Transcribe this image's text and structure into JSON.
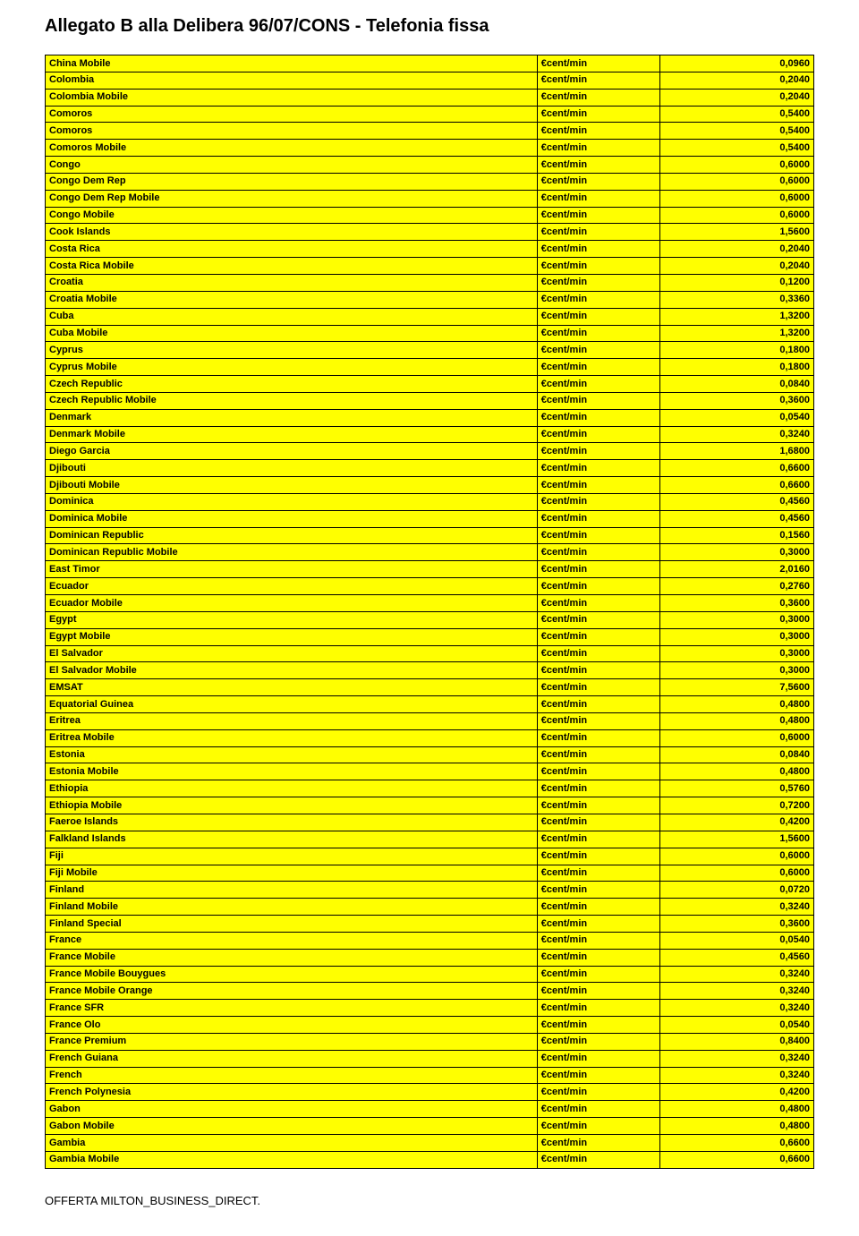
{
  "title": "Allegato B alla Delibera 96/07/CONS - Telefonia fissa",
  "unit_label": "€cent/min",
  "footer": "OFFERTA MILTON_BUSINESS_DIRECT.",
  "rows": [
    {
      "country": "China Mobile",
      "value": "0,0960"
    },
    {
      "country": "Colombia",
      "value": "0,2040"
    },
    {
      "country": "Colombia Mobile",
      "value": "0,2040"
    },
    {
      "country": "Comoros",
      "value": "0,5400"
    },
    {
      "country": "Comoros",
      "value": "0,5400"
    },
    {
      "country": "Comoros Mobile",
      "value": "0,5400"
    },
    {
      "country": "Congo",
      "value": "0,6000"
    },
    {
      "country": "Congo Dem Rep",
      "value": "0,6000"
    },
    {
      "country": "Congo Dem Rep Mobile",
      "value": "0,6000"
    },
    {
      "country": "Congo Mobile",
      "value": "0,6000"
    },
    {
      "country": "Cook Islands",
      "value": "1,5600"
    },
    {
      "country": "Costa Rica",
      "value": "0,2040"
    },
    {
      "country": "Costa Rica Mobile",
      "value": "0,2040"
    },
    {
      "country": "Croatia",
      "value": "0,1200"
    },
    {
      "country": "Croatia Mobile",
      "value": "0,3360"
    },
    {
      "country": "Cuba",
      "value": "1,3200"
    },
    {
      "country": "Cuba Mobile",
      "value": "1,3200"
    },
    {
      "country": "Cyprus",
      "value": "0,1800"
    },
    {
      "country": "Cyprus Mobile",
      "value": "0,1800"
    },
    {
      "country": "Czech Republic",
      "value": "0,0840"
    },
    {
      "country": "Czech Republic Mobile",
      "value": "0,3600"
    },
    {
      "country": "Denmark",
      "value": "0,0540"
    },
    {
      "country": "Denmark Mobile",
      "value": "0,3240"
    },
    {
      "country": "Diego Garcia",
      "value": "1,6800"
    },
    {
      "country": "Djibouti",
      "value": "0,6600"
    },
    {
      "country": "Djibouti Mobile",
      "value": "0,6600"
    },
    {
      "country": "Dominica",
      "value": "0,4560"
    },
    {
      "country": "Dominica Mobile",
      "value": "0,4560"
    },
    {
      "country": "Dominican Republic",
      "value": "0,1560"
    },
    {
      "country": "Dominican Republic Mobile",
      "value": "0,3000"
    },
    {
      "country": "East Timor",
      "value": "2,0160"
    },
    {
      "country": "Ecuador",
      "value": "0,2760"
    },
    {
      "country": "Ecuador Mobile",
      "value": "0,3600"
    },
    {
      "country": "Egypt",
      "value": "0,3000"
    },
    {
      "country": "Egypt Mobile",
      "value": "0,3000"
    },
    {
      "country": "El Salvador",
      "value": "0,3000"
    },
    {
      "country": "El Salvador Mobile",
      "value": "0,3000"
    },
    {
      "country": "EMSAT",
      "value": "7,5600"
    },
    {
      "country": "Equatorial Guinea",
      "value": "0,4800"
    },
    {
      "country": "Eritrea",
      "value": "0,4800"
    },
    {
      "country": "Eritrea Mobile",
      "value": "0,6000"
    },
    {
      "country": "Estonia",
      "value": "0,0840"
    },
    {
      "country": "Estonia Mobile",
      "value": "0,4800"
    },
    {
      "country": "Ethiopia",
      "value": "0,5760"
    },
    {
      "country": "Ethiopia Mobile",
      "value": "0,7200"
    },
    {
      "country": "Faeroe Islands",
      "value": "0,4200"
    },
    {
      "country": "Falkland Islands",
      "value": "1,5600"
    },
    {
      "country": "Fiji",
      "value": "0,6000"
    },
    {
      "country": "Fiji Mobile",
      "value": "0,6000"
    },
    {
      "country": "Finland",
      "value": "0,0720"
    },
    {
      "country": "Finland Mobile",
      "value": "0,3240"
    },
    {
      "country": "Finland Special",
      "value": "0,3600"
    },
    {
      "country": "France",
      "value": "0,0540"
    },
    {
      "country": "France Mobile",
      "value": "0,4560"
    },
    {
      "country": "France Mobile Bouygues",
      "value": "0,3240"
    },
    {
      "country": "France Mobile Orange",
      "value": "0,3240"
    },
    {
      "country": "France SFR",
      "value": "0,3240"
    },
    {
      "country": "France Olo",
      "value": "0,0540"
    },
    {
      "country": "France Premium",
      "value": "0,8400"
    },
    {
      "country": "French Guiana",
      "value": "0,3240"
    },
    {
      "country": "French",
      "value": "0,3240"
    },
    {
      "country": "French Polynesia",
      "value": "0,4200"
    },
    {
      "country": "Gabon",
      "value": "0,4800"
    },
    {
      "country": "Gabon Mobile",
      "value": "0,4800"
    },
    {
      "country": "Gambia",
      "value": "0,6600"
    },
    {
      "country": "Gambia Mobile",
      "value": "0,6600"
    }
  ]
}
